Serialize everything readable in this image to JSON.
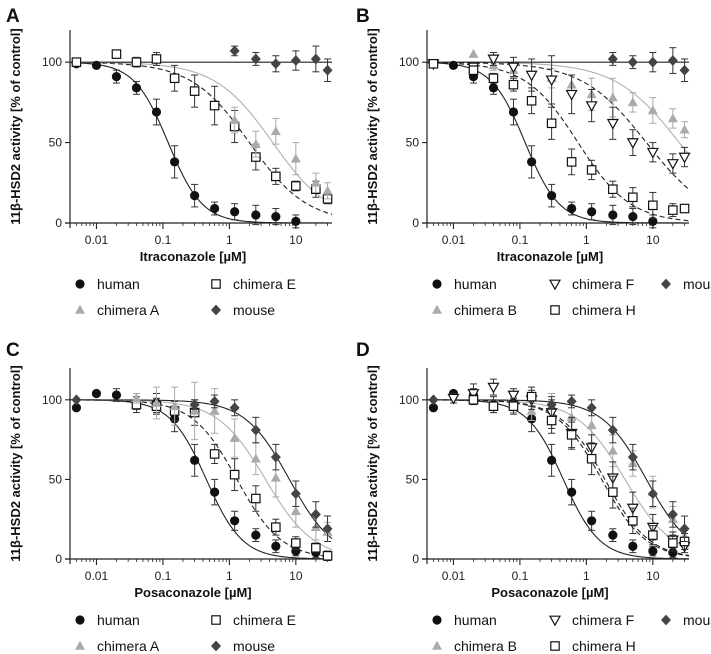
{
  "chart_data": [
    {
      "panel": "A",
      "type": "scatter",
      "xlabel": "Itraconazole [µM]",
      "ylabel": "11β-HSD2 activity [% of control]",
      "xscale": "log",
      "xlim": [
        0.004,
        35
      ],
      "ylim": [
        0,
        120
      ],
      "xticks": [
        "0.01",
        "0.1",
        "1",
        "10"
      ],
      "yticks": [
        "0",
        "50",
        "100"
      ],
      "legend": [
        [
          "human",
          "chimera E"
        ],
        [
          "chimera A",
          "mouse"
        ]
      ],
      "series": [
        {
          "name": "human",
          "color": "#111111",
          "marker": "circle",
          "line": "solid",
          "ic50": 0.12,
          "hill": 1.7,
          "x": [
            0.005,
            0.01,
            0.02,
            0.04,
            0.08,
            0.15,
            0.3,
            0.6,
            1.2,
            2.5,
            5,
            10
          ],
          "y": [
            99,
            98,
            91,
            84,
            69,
            38,
            17,
            9,
            7,
            5,
            4,
            1
          ],
          "err": [
            0,
            0,
            4,
            4,
            8,
            10,
            7,
            4,
            5,
            6,
            5,
            4
          ]
        },
        {
          "name": "chimera E",
          "color": "#111111",
          "marker": "square",
          "line": "dashed",
          "ic50": 2.0,
          "hill": 1.0,
          "x": [
            0.005,
            0.02,
            0.04,
            0.08,
            0.15,
            0.3,
            0.6,
            1.2,
            2.5,
            5,
            10,
            20,
            30
          ],
          "y": [
            100,
            105,
            100,
            102,
            90,
            82,
            73,
            60,
            41,
            29,
            23,
            21,
            15
          ],
          "err": [
            0,
            0,
            3,
            4,
            8,
            10,
            12,
            10,
            8,
            5,
            3,
            5,
            3
          ]
        },
        {
          "name": "chimera A",
          "color": "#aaaaaa",
          "marker": "triangle",
          "line": "solid",
          "ic50": 4.5,
          "hill": 1.0,
          "x": [
            1.2,
            2.5,
            5,
            10,
            20,
            30
          ],
          "y": [
            64,
            49,
            57,
            40,
            25,
            20
          ],
          "err": [
            8,
            8,
            8,
            10,
            6,
            5
          ]
        },
        {
          "name": "mouse",
          "color": "#444444",
          "marker": "diamond",
          "line": "solid",
          "flat": 100,
          "x": [
            1.2,
            2.5,
            5,
            10,
            20,
            30
          ],
          "y": [
            107,
            102,
            99,
            101,
            102,
            95
          ],
          "err": [
            3,
            4,
            5,
            6,
            8,
            7
          ]
        }
      ]
    },
    {
      "panel": "B",
      "type": "scatter",
      "xlabel": "Itraconazole [µM]",
      "ylabel": "11β-HSD2 activity [% of control]",
      "xscale": "log",
      "xlim": [
        0.004,
        35
      ],
      "ylim": [
        0,
        120
      ],
      "xticks": [
        "0.01",
        "0.1",
        "1",
        "10"
      ],
      "yticks": [
        "0",
        "50",
        "100"
      ],
      "legend": [
        [
          "human",
          "chimera F",
          "mouse"
        ],
        [
          "chimera B",
          "chimera H"
        ]
      ],
      "series": [
        {
          "name": "human",
          "color": "#111111",
          "marker": "circle",
          "line": "solid",
          "ic50": 0.12,
          "hill": 1.7,
          "x": [
            0.005,
            0.01,
            0.02,
            0.04,
            0.08,
            0.15,
            0.3,
            0.6,
            1.2,
            2.5,
            5,
            10
          ],
          "y": [
            99,
            98,
            91,
            84,
            69,
            38,
            17,
            9,
            7,
            5,
            4,
            1
          ],
          "err": [
            0,
            0,
            4,
            4,
            8,
            10,
            7,
            4,
            5,
            6,
            5,
            4
          ]
        },
        {
          "name": "chimera B",
          "color": "#aaaaaa",
          "marker": "triangle",
          "line": "solid",
          "ic50": 25,
          "hill": 0.9,
          "x": [
            0.005,
            0.02,
            0.04,
            0.08,
            0.3,
            0.6,
            1.2,
            2.5,
            5,
            10,
            20,
            30
          ],
          "y": [
            99,
            105,
            98,
            95,
            90,
            86,
            80,
            78,
            75,
            70,
            65,
            58
          ],
          "err": [
            0,
            0,
            3,
            4,
            6,
            6,
            10,
            12,
            6,
            8,
            6,
            5
          ]
        },
        {
          "name": "chimera F",
          "color": "#111111",
          "marker": "tri-down-open",
          "line": "dashed",
          "ic50": 8.0,
          "hill": 0.9,
          "x": [
            0.005,
            0.02,
            0.04,
            0.08,
            0.15,
            0.3,
            0.6,
            1.2,
            2.5,
            5,
            10,
            20,
            30
          ],
          "y": [
            99,
            97,
            102,
            97,
            92,
            89,
            80,
            73,
            62,
            50,
            44,
            37,
            41
          ],
          "err": [
            0,
            0,
            4,
            6,
            10,
            15,
            12,
            10,
            10,
            8,
            6,
            6,
            6
          ]
        },
        {
          "name": "chimera H",
          "color": "#111111",
          "marker": "square",
          "line": "dashed",
          "ic50": 0.75,
          "hill": 1.1,
          "x": [
            0.005,
            0.02,
            0.04,
            0.08,
            0.15,
            0.3,
            0.6,
            1.2,
            2.5,
            5,
            10,
            20,
            30
          ],
          "y": [
            99,
            95,
            90,
            86,
            76,
            62,
            38,
            33,
            21,
            16,
            11,
            8,
            9
          ],
          "err": [
            0,
            0,
            3,
            4,
            8,
            10,
            8,
            6,
            5,
            6,
            8,
            4,
            2
          ]
        },
        {
          "name": "mouse",
          "color": "#444444",
          "marker": "diamond",
          "line": "solid",
          "flat": 100,
          "x": [
            2.5,
            5,
            10,
            20,
            30
          ],
          "y": [
            102,
            100,
            100,
            101,
            95
          ],
          "err": [
            4,
            4,
            6,
            8,
            7
          ]
        }
      ]
    },
    {
      "panel": "C",
      "type": "scatter",
      "xlabel": "Posaconazole [µM]",
      "ylabel": "11β-HSD2 activity [% of control]",
      "xscale": "log",
      "xlim": [
        0.004,
        35
      ],
      "ylim": [
        0,
        120
      ],
      "xticks": [
        "0.01",
        "0.1",
        "1",
        "10"
      ],
      "yticks": [
        "0",
        "50",
        "100"
      ],
      "legend": [
        [
          "human",
          "chimera E"
        ],
        [
          "chimera A",
          "mouse"
        ]
      ],
      "series": [
        {
          "name": "human",
          "color": "#111111",
          "marker": "circle",
          "line": "solid",
          "ic50": 0.45,
          "hill": 1.6,
          "x": [
            0.005,
            0.01,
            0.02,
            0.04,
            0.08,
            0.15,
            0.3,
            0.6,
            1.2,
            2.5,
            5,
            10,
            20
          ],
          "y": [
            95,
            104,
            103,
            97,
            98,
            88,
            62,
            42,
            24,
            15,
            8,
            5,
            4
          ],
          "err": [
            0,
            0,
            4,
            5,
            6,
            8,
            10,
            8,
            6,
            4,
            4,
            3,
            3
          ]
        },
        {
          "name": "chimera E",
          "color": "#111111",
          "marker": "square",
          "line": "dashed",
          "ic50": 1.3,
          "hill": 1.3,
          "x": [
            0.04,
            0.08,
            0.15,
            0.3,
            0.6,
            1.2,
            2.5,
            5,
            10,
            20,
            30
          ],
          "y": [
            97,
            96,
            93,
            92,
            66,
            53,
            38,
            20,
            10,
            7,
            2
          ],
          "err": [
            3,
            5,
            6,
            8,
            6,
            10,
            8,
            5,
            4,
            3,
            3
          ]
        },
        {
          "name": "chimera A",
          "color": "#aaaaaa",
          "marker": "triangle",
          "line": "solid",
          "ic50": 3.5,
          "hill": 1.2,
          "x": [
            0.04,
            0.08,
            0.15,
            0.3,
            0.6,
            1.2,
            2.5,
            5,
            10,
            20,
            30
          ],
          "y": [
            101,
            98,
            96,
            93,
            93,
            76,
            63,
            51,
            30,
            20,
            17
          ],
          "err": [
            3,
            10,
            12,
            18,
            14,
            12,
            10,
            12,
            10,
            8,
            6
          ]
        },
        {
          "name": "mouse",
          "color": "#444444",
          "marker": "diamond",
          "line": "solid",
          "ic50": 8.0,
          "hill": 1.3,
          "x": [
            0.005,
            0.3,
            0.6,
            1.2,
            2.5,
            5,
            10,
            20,
            30
          ],
          "y": [
            100,
            97,
            99,
            95,
            81,
            64,
            41,
            28,
            19
          ],
          "err": [
            0,
            3,
            4,
            5,
            8,
            8,
            8,
            8,
            8
          ]
        }
      ]
    },
    {
      "panel": "D",
      "type": "scatter",
      "xlabel": "Posaconazole [µM]",
      "ylabel": "11β-HSD2 activity [% of control]",
      "xscale": "log",
      "xlim": [
        0.004,
        35
      ],
      "ylim": [
        0,
        120
      ],
      "xticks": [
        "0.01",
        "0.1",
        "1",
        "10"
      ],
      "yticks": [
        "0",
        "50",
        "100"
      ],
      "legend": [
        [
          "human",
          "chimera F",
          "mouse"
        ],
        [
          "chimera B",
          "chimera H"
        ]
      ],
      "series": [
        {
          "name": "human",
          "color": "#111111",
          "marker": "circle",
          "line": "solid",
          "ic50": 0.45,
          "hill": 1.6,
          "x": [
            0.005,
            0.01,
            0.02,
            0.04,
            0.08,
            0.15,
            0.3,
            0.6,
            1.2,
            2.5,
            5,
            10,
            20
          ],
          "y": [
            95,
            104,
            103,
            97,
            98,
            88,
            62,
            42,
            24,
            15,
            8,
            5,
            4
          ],
          "err": [
            0,
            0,
            4,
            5,
            6,
            8,
            10,
            8,
            6,
            4,
            4,
            3,
            3
          ]
        },
        {
          "name": "chimera B",
          "color": "#aaaaaa",
          "marker": "triangle",
          "line": "solid",
          "ic50": 3.8,
          "hill": 1.2,
          "x": [
            0.04,
            0.08,
            0.15,
            0.3,
            0.6,
            1.2,
            2.5,
            5,
            10,
            20,
            30
          ],
          "y": [
            96,
            97,
            93,
            96,
            89,
            84,
            68,
            60,
            42,
            25,
            14
          ],
          "err": [
            4,
            5,
            6,
            8,
            10,
            12,
            10,
            8,
            10,
            8,
            6
          ]
        },
        {
          "name": "chimera F",
          "color": "#111111",
          "marker": "tri-down-open",
          "line": "dashed",
          "ic50": 1.9,
          "hill": 1.3,
          "x": [
            0.01,
            0.02,
            0.04,
            0.08,
            0.15,
            0.3,
            0.6,
            1.2,
            2.5,
            5,
            10,
            20,
            30
          ],
          "y": [
            101,
            104,
            108,
            103,
            100,
            92,
            79,
            70,
            51,
            32,
            20,
            12,
            8
          ],
          "err": [
            3,
            6,
            5,
            4,
            6,
            10,
            10,
            8,
            10,
            10,
            8,
            5,
            4
          ]
        },
        {
          "name": "chimera H",
          "color": "#111111",
          "marker": "square",
          "line": "dashed",
          "ic50": 1.7,
          "hill": 1.3,
          "x": [
            0.02,
            0.04,
            0.08,
            0.15,
            0.3,
            0.6,
            1.2,
            2.5,
            5,
            10,
            20,
            30
          ],
          "y": [
            100,
            96,
            96,
            102,
            87,
            78,
            63,
            42,
            24,
            15,
            10,
            11
          ],
          "err": [
            3,
            4,
            5,
            6,
            8,
            8,
            10,
            10,
            8,
            6,
            5,
            5
          ]
        },
        {
          "name": "mouse",
          "color": "#444444",
          "marker": "diamond",
          "line": "solid",
          "ic50": 8.0,
          "hill": 1.3,
          "x": [
            0.005,
            0.3,
            0.6,
            1.2,
            2.5,
            5,
            10,
            20,
            30
          ],
          "y": [
            100,
            97,
            99,
            95,
            81,
            64,
            41,
            28,
            19
          ],
          "err": [
            0,
            3,
            4,
            5,
            8,
            8,
            8,
            8,
            8
          ]
        }
      ]
    }
  ]
}
